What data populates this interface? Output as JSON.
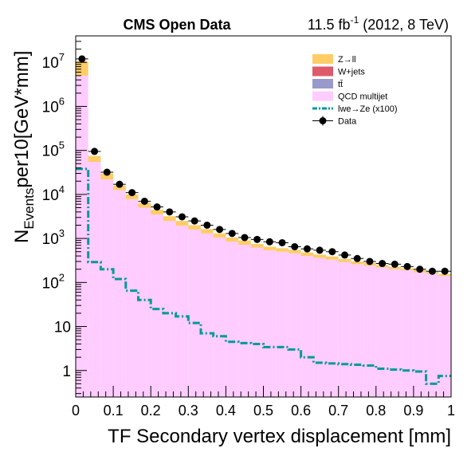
{
  "header": {
    "title": "CMS Open Data",
    "lumi_main": "11.5 fb",
    "lumi_sup": "-1",
    "lumi_tail": " (2012, 8 TeV)"
  },
  "chart_data": {
    "type": "histogram",
    "title": "CMS Open Data",
    "xlabel": "TF Secondary vertex displacement [mm]",
    "ylabel_parts": [
      "N",
      "Events",
      "per10[GeV*mm]"
    ],
    "xlim": [
      0,
      1
    ],
    "ylim": [
      0.25,
      40000000
    ],
    "yscale": "log",
    "grid": false,
    "legend_position": "top-right",
    "x_ticks": [
      0,
      0.1,
      0.2,
      0.3,
      0.4,
      0.5,
      0.6,
      0.7,
      0.8,
      0.9,
      1
    ],
    "x_tick_labels": [
      "0",
      "0.1",
      "0.2",
      "0.3",
      "0.4",
      "0.5",
      "0.6",
      "0.7",
      "0.8",
      "0.9",
      "1"
    ],
    "y_ticks": [
      1,
      10,
      100,
      1000,
      10000,
      100000,
      1000000,
      10000000
    ],
    "y_tick_labels": [
      {
        "base": "1",
        "exp": ""
      },
      {
        "base": "10",
        "exp": ""
      },
      {
        "base": "10",
        "exp": "2"
      },
      {
        "base": "10",
        "exp": "3"
      },
      {
        "base": "10",
        "exp": "4"
      },
      {
        "base": "10",
        "exp": "5"
      },
      {
        "base": "10",
        "exp": "6"
      },
      {
        "base": "10",
        "exp": "7"
      }
    ],
    "bin_edges": [
      0,
      0.03333,
      0.06667,
      0.1,
      0.13333,
      0.16667,
      0.2,
      0.23333,
      0.26667,
      0.3,
      0.33333,
      0.36667,
      0.4,
      0.43333,
      0.46667,
      0.5,
      0.53333,
      0.56667,
      0.6,
      0.63333,
      0.66667,
      0.7,
      0.73333,
      0.76667,
      0.8,
      0.83333,
      0.86667,
      0.9,
      0.93333,
      0.96667,
      1
    ],
    "stack": [
      {
        "name": "QCD multijet",
        "color": "#ffccff",
        "values": [
          5000000,
          55000,
          22000,
          12500,
          7800,
          5000,
          3500,
          2500,
          1950,
          1600,
          1300,
          1050,
          850,
          720,
          620,
          540,
          500,
          460,
          400,
          360,
          330,
          290,
          260,
          240,
          220,
          200,
          190,
          170,
          160,
          140
        ]
      },
      {
        "name": "t#bar{t}",
        "color": "#9999cc",
        "values": [
          0,
          0,
          0,
          0,
          0,
          0,
          0,
          0,
          0,
          0,
          0,
          0,
          0,
          0,
          0,
          0,
          0,
          0,
          0,
          0,
          0,
          0,
          0,
          0,
          0,
          0,
          0,
          0,
          0,
          0
        ]
      },
      {
        "name": "W+jets",
        "color": "#de5a6a",
        "values": [
          0,
          0,
          0,
          0,
          0,
          0,
          0,
          0,
          0,
          0,
          0,
          0,
          0,
          0,
          0,
          0,
          0,
          0,
          0,
          0,
          0,
          0,
          0,
          0,
          0,
          0,
          0,
          0,
          0,
          0
        ]
      },
      {
        "name": "Z→ll",
        "color": "#ffcc66",
        "values": [
          5500000,
          20000,
          8000,
          3500,
          2200,
          1500,
          1000,
          700,
          550,
          400,
          330,
          250,
          200,
          180,
          130,
          110,
          100,
          90,
          80,
          70,
          60,
          50,
          40,
          40,
          30,
          25,
          20,
          25,
          15,
          15
        ]
      }
    ],
    "signal": {
      "name": "lwe→Ze (x100)",
      "color": "#009999",
      "values": [
        38000,
        290,
        200,
        120,
        65,
        40,
        25,
        20,
        17,
        12,
        7,
        6,
        4.5,
        4.2,
        4,
        3.4,
        3.4,
        3,
        2,
        1.5,
        1.45,
        1.4,
        1.35,
        1.3,
        1.1,
        1.05,
        1,
        0.95,
        0.5,
        0.75
      ]
    },
    "data": {
      "name": "Data",
      "color": "#000000",
      "values": [
        12000000,
        95000,
        32000,
        17000,
        11000,
        7000,
        5200,
        4000,
        3100,
        2500,
        2000,
        1600,
        1300,
        1050,
        950,
        840,
        800,
        650,
        580,
        540,
        500,
        420,
        350,
        300,
        270,
        260,
        230,
        200,
        180,
        180
      ]
    },
    "legend": [
      {
        "label": "Z→ll",
        "kind": "fill",
        "color": "#ffcc66"
      },
      {
        "label": "W+jets",
        "kind": "fill",
        "color": "#de5a6a"
      },
      {
        "label": "tt̄",
        "kind": "fill",
        "color": "#9999cc"
      },
      {
        "label": "QCD multijet",
        "kind": "fill",
        "color": "#ffccff"
      },
      {
        "label": "lwe→Ze (x100)",
        "kind": "dashdot",
        "color": "#009999"
      },
      {
        "label": "Data",
        "kind": "marker",
        "color": "#000000"
      }
    ]
  }
}
